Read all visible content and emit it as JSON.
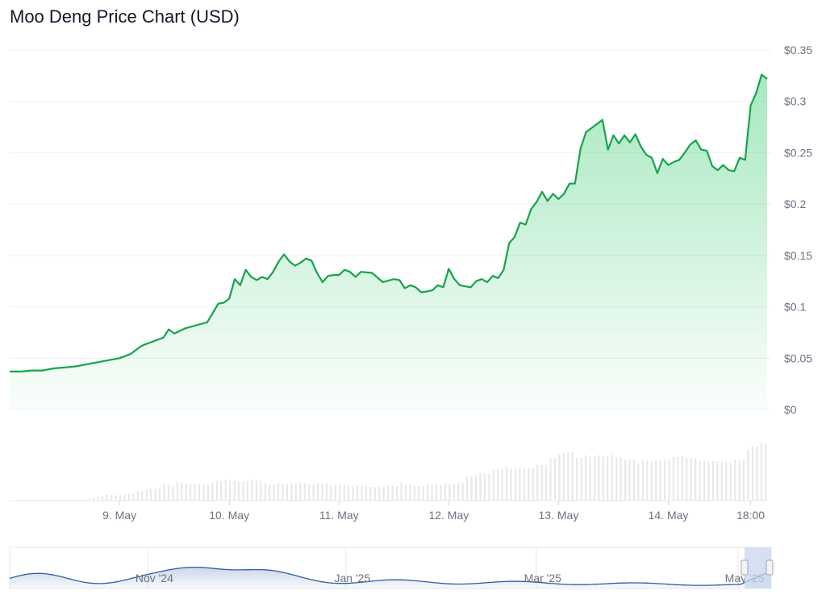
{
  "chart_data": {
    "type": "area",
    "title": "Moo Deng Price Chart (USD)",
    "currency_prefix": "$",
    "y_ticks": [
      0,
      0.05,
      0.1,
      0.15,
      0.2,
      0.25,
      0.3,
      0.35
    ],
    "y_tick_labels": [
      "$0",
      "$0.05",
      "$0.1",
      "$0.15",
      "$0.2",
      "$0.25",
      "$0.3",
      "$0.35"
    ],
    "ylim": [
      0,
      0.35
    ],
    "xlim": [
      0,
      6.9
    ],
    "x_unit": "days since 8 May 00:00",
    "x_ticks": [
      {
        "x": 1.0,
        "label": "9. May"
      },
      {
        "x": 2.0,
        "label": "10. May"
      },
      {
        "x": 3.0,
        "label": "11. May"
      },
      {
        "x": 4.0,
        "label": "12. May"
      },
      {
        "x": 5.0,
        "label": "13. May"
      },
      {
        "x": 6.0,
        "label": "14. May"
      },
      {
        "x": 6.75,
        "label": "18:00"
      }
    ],
    "grid": true,
    "legend": "none",
    "line_color": "#16a34a",
    "fill_color": "#22c55e",
    "volume_color": "#e5e7eb",
    "navigator_color": "#2f5ca8",
    "series": [
      {
        "name": "Price",
        "points": [
          [
            0.0,
            0.037
          ],
          [
            0.1,
            0.037
          ],
          [
            0.2,
            0.038
          ],
          [
            0.3,
            0.038
          ],
          [
            0.4,
            0.04
          ],
          [
            0.5,
            0.041
          ],
          [
            0.6,
            0.042
          ],
          [
            0.7,
            0.044
          ],
          [
            0.8,
            0.046
          ],
          [
            0.9,
            0.048
          ],
          [
            1.0,
            0.05
          ],
          [
            1.1,
            0.054
          ],
          [
            1.2,
            0.062
          ],
          [
            1.3,
            0.066
          ],
          [
            1.4,
            0.07
          ],
          [
            1.45,
            0.078
          ],
          [
            1.5,
            0.074
          ],
          [
            1.6,
            0.079
          ],
          [
            1.7,
            0.082
          ],
          [
            1.8,
            0.085
          ],
          [
            1.85,
            0.094
          ],
          [
            1.9,
            0.103
          ],
          [
            1.95,
            0.104
          ],
          [
            2.0,
            0.108
          ],
          [
            2.05,
            0.127
          ],
          [
            2.1,
            0.121
          ],
          [
            2.15,
            0.136
          ],
          [
            2.2,
            0.129
          ],
          [
            2.25,
            0.126
          ],
          [
            2.3,
            0.129
          ],
          [
            2.35,
            0.127
          ],
          [
            2.4,
            0.134
          ],
          [
            2.45,
            0.144
          ],
          [
            2.5,
            0.151
          ],
          [
            2.55,
            0.144
          ],
          [
            2.6,
            0.14
          ],
          [
            2.65,
            0.143
          ],
          [
            2.7,
            0.147
          ],
          [
            2.75,
            0.145
          ],
          [
            2.8,
            0.133
          ],
          [
            2.85,
            0.124
          ],
          [
            2.9,
            0.13
          ],
          [
            2.95,
            0.131
          ],
          [
            3.0,
            0.131
          ],
          [
            3.05,
            0.136
          ],
          [
            3.1,
            0.134
          ],
          [
            3.15,
            0.129
          ],
          [
            3.2,
            0.134
          ],
          [
            3.3,
            0.133
          ],
          [
            3.4,
            0.124
          ],
          [
            3.5,
            0.127
          ],
          [
            3.55,
            0.126
          ],
          [
            3.6,
            0.118
          ],
          [
            3.65,
            0.121
          ],
          [
            3.7,
            0.119
          ],
          [
            3.75,
            0.114
          ],
          [
            3.8,
            0.115
          ],
          [
            3.85,
            0.116
          ],
          [
            3.9,
            0.121
          ],
          [
            3.95,
            0.119
          ],
          [
            4.0,
            0.137
          ],
          [
            4.05,
            0.127
          ],
          [
            4.1,
            0.121
          ],
          [
            4.2,
            0.119
          ],
          [
            4.25,
            0.125
          ],
          [
            4.3,
            0.127
          ],
          [
            4.35,
            0.124
          ],
          [
            4.4,
            0.13
          ],
          [
            4.45,
            0.128
          ],
          [
            4.5,
            0.136
          ],
          [
            4.55,
            0.162
          ],
          [
            4.6,
            0.168
          ],
          [
            4.65,
            0.182
          ],
          [
            4.7,
            0.18
          ],
          [
            4.75,
            0.195
          ],
          [
            4.8,
            0.202
          ],
          [
            4.85,
            0.212
          ],
          [
            4.9,
            0.203
          ],
          [
            4.95,
            0.21
          ],
          [
            5.0,
            0.205
          ],
          [
            5.05,
            0.21
          ],
          [
            5.1,
            0.22
          ],
          [
            5.15,
            0.22
          ],
          [
            5.2,
            0.254
          ],
          [
            5.25,
            0.27
          ],
          [
            5.35,
            0.278
          ],
          [
            5.4,
            0.282
          ],
          [
            5.45,
            0.253
          ],
          [
            5.5,
            0.267
          ],
          [
            5.55,
            0.259
          ],
          [
            5.6,
            0.267
          ],
          [
            5.65,
            0.26
          ],
          [
            5.7,
            0.268
          ],
          [
            5.75,
            0.256
          ],
          [
            5.8,
            0.248
          ],
          [
            5.85,
            0.245
          ],
          [
            5.9,
            0.23
          ],
          [
            5.95,
            0.244
          ],
          [
            6.0,
            0.238
          ],
          [
            6.05,
            0.241
          ],
          [
            6.1,
            0.243
          ],
          [
            6.15,
            0.25
          ],
          [
            6.2,
            0.258
          ],
          [
            6.25,
            0.262
          ],
          [
            6.3,
            0.253
          ],
          [
            6.35,
            0.252
          ],
          [
            6.4,
            0.237
          ],
          [
            6.45,
            0.233
          ],
          [
            6.5,
            0.238
          ],
          [
            6.55,
            0.233
          ],
          [
            6.6,
            0.232
          ],
          [
            6.65,
            0.245
          ],
          [
            6.7,
            0.243
          ],
          [
            6.75,
            0.296
          ],
          [
            6.8,
            0.308
          ],
          [
            6.85,
            0.326
          ],
          [
            6.9,
            0.322
          ]
        ]
      }
    ],
    "volume": [
      0,
      0,
      0,
      0,
      0,
      0,
      0,
      0,
      0,
      0,
      0,
      0,
      0,
      0,
      0,
      0,
      0,
      0,
      0,
      0
    ],
    "navigator": {
      "labels": [
        {
          "pos": 0.19,
          "label": "Nov '24"
        },
        {
          "pos": 0.45,
          "label": "Jan '25"
        },
        {
          "pos": 0.7,
          "label": "Mar '25"
        },
        {
          "pos": 0.965,
          "label": "May '25"
        }
      ]
    }
  }
}
